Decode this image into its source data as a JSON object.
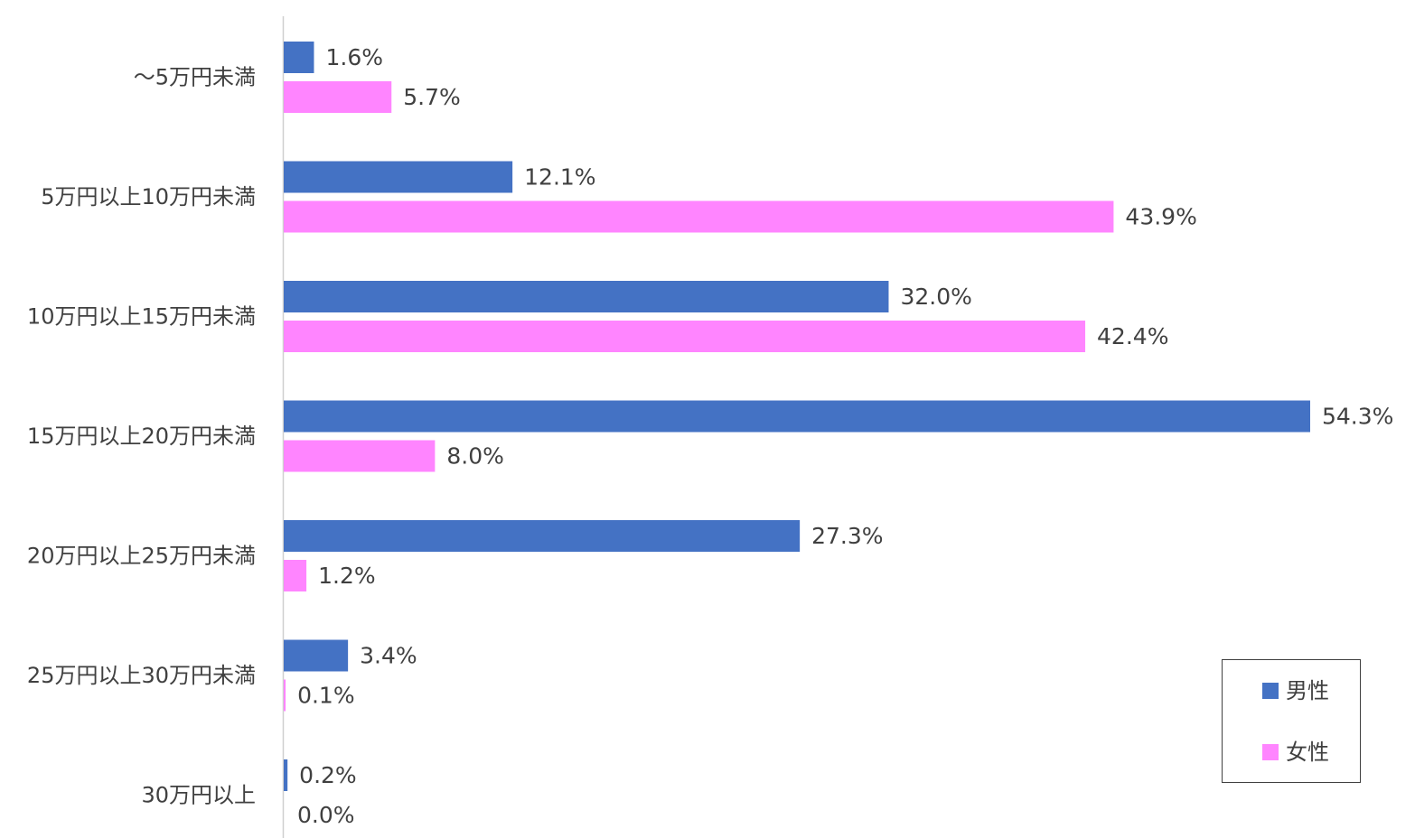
{
  "chart_data": {
    "type": "bar",
    "orientation": "horizontal",
    "categories": [
      "～5万円未満",
      "5万円以上10万円未満",
      "10万円以上15万円未満",
      "15万円以上20万円未満",
      "20万円以上25万円未満",
      "25万円以上30万円未満",
      "30万円以上"
    ],
    "series": [
      {
        "name": "男性",
        "color": "#4472C4",
        "values": [
          1.6,
          12.1,
          32.0,
          54.3,
          27.3,
          3.4,
          0.2
        ],
        "labels": [
          "1.6%",
          "12.1%",
          "32.0%",
          "54.3%",
          "27.3%",
          "3.4%",
          "0.2%"
        ]
      },
      {
        "name": "女性",
        "color": "#FF85FF",
        "values": [
          5.7,
          43.9,
          42.4,
          8.0,
          1.2,
          0.1,
          0.0
        ],
        "labels": [
          "5.7%",
          "43.9%",
          "42.4%",
          "8.0%",
          "1.2%",
          "0.1%",
          "0.0%"
        ]
      }
    ],
    "title": "",
    "xlabel": "",
    "ylabel": "",
    "xlim": [
      0,
      54.3
    ],
    "grid": false,
    "legend_position": "bottom-right"
  }
}
